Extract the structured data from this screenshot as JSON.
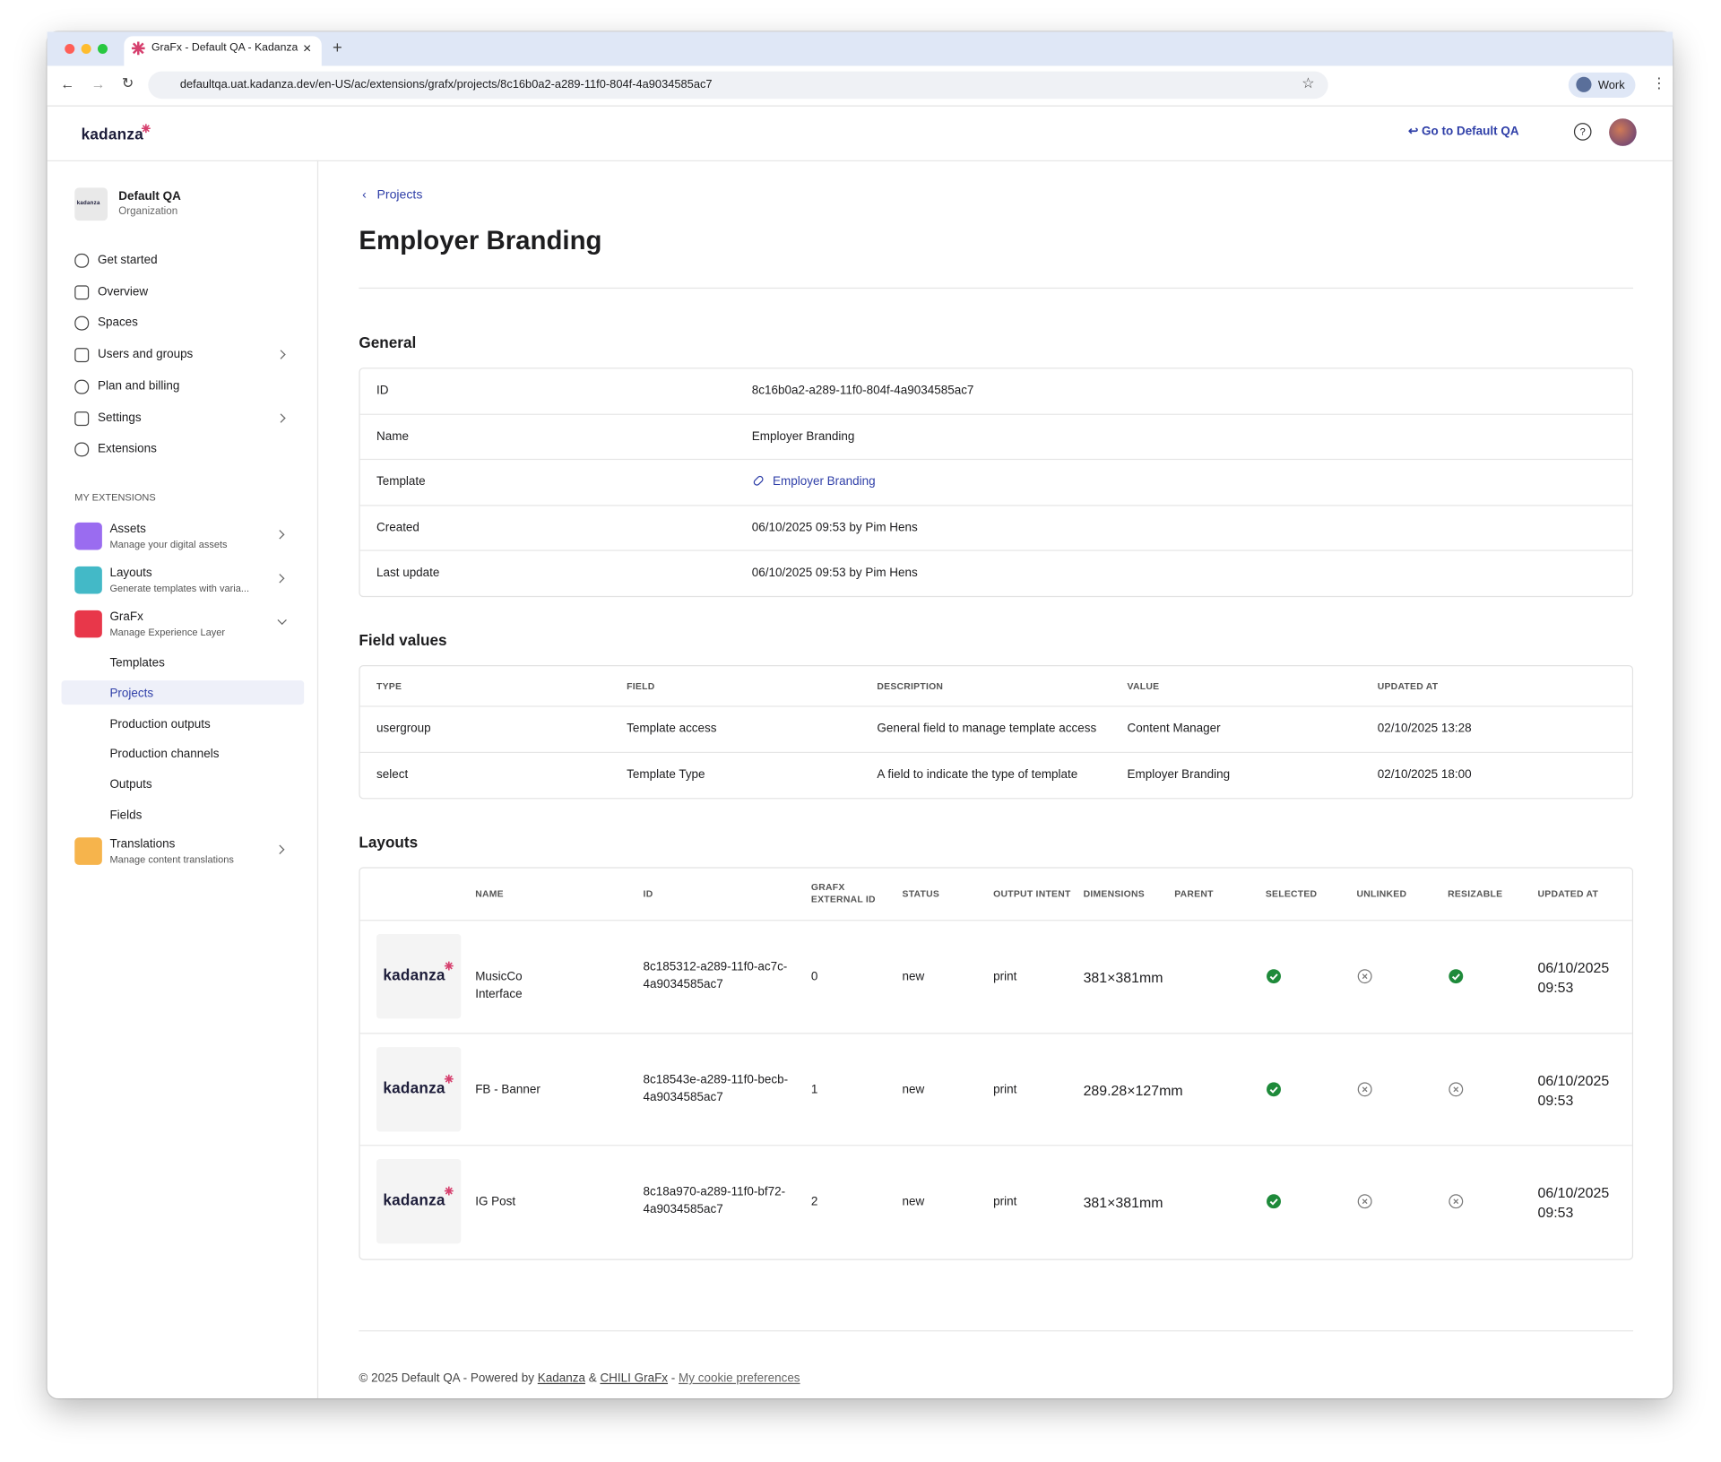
{
  "browser": {
    "tab_title": "GraFx - Default QA - Kadanza",
    "url": "defaultqa.uat.kadanza.dev/en-US/ac/extensions/grafx/projects/8c16b0a2-a289-11f0-804f-4a9034585ac7",
    "profile": "Work"
  },
  "header": {
    "logo": "kadanza",
    "back_link": "Go to Default QA"
  },
  "sidebar": {
    "org_logo": "kadanza",
    "org_name": "Default QA",
    "org_type": "Organization",
    "nav": [
      {
        "label": "Get started"
      },
      {
        "label": "Overview"
      },
      {
        "label": "Spaces"
      },
      {
        "label": "Users and groups",
        "expandable": true
      },
      {
        "label": "Plan and billing"
      },
      {
        "label": "Settings",
        "expandable": true
      },
      {
        "label": "Extensions"
      }
    ],
    "extensions_heading": "MY EXTENSIONS",
    "extensions": [
      {
        "name": "Assets",
        "description": "Manage your digital assets",
        "color": "#9a6cf0"
      },
      {
        "name": "Layouts",
        "description": "Generate templates with varia...",
        "color": "#43b9c7"
      },
      {
        "name": "GraFx",
        "description": "Manage Experience Layer",
        "color": "#e8374a",
        "expanded": true,
        "items": [
          "Templates",
          "Projects",
          "Production outputs",
          "Production channels",
          "Outputs",
          "Fields"
        ],
        "active_item": 1
      },
      {
        "name": "Translations",
        "description": "Manage content translations",
        "color": "#f6b44c"
      }
    ]
  },
  "main": {
    "breadcrumb": "Projects",
    "title": "Employer Branding",
    "general": {
      "heading": "General",
      "rows": [
        [
          "ID",
          "8c16b0a2-a289-11f0-804f-4a9034585ac7"
        ],
        [
          "Name",
          "Employer Branding"
        ],
        [
          "Template",
          "Employer Branding"
        ],
        [
          "Created",
          "06/10/2025 09:53 by Pim Hens"
        ],
        [
          "Last update",
          "06/10/2025 09:53 by Pim Hens"
        ]
      ],
      "link_row": 2
    },
    "field_values": {
      "heading": "Field values",
      "columns": [
        "TYPE",
        "FIELD",
        "DESCRIPTION",
        "VALUE",
        "UPDATED AT"
      ],
      "rows": [
        [
          "usergroup",
          "Template access",
          "General field to manage template access",
          "Content Manager",
          "02/10/2025 13:28"
        ],
        [
          "select",
          "Template Type",
          "A field to indicate the type of template",
          "Employer Branding",
          "02/10/2025 18:00"
        ]
      ]
    },
    "layouts": {
      "heading": "Layouts",
      "columns": [
        "NAME",
        "ID",
        "GRAFX EXTERNAL ID",
        "STATUS",
        "OUTPUT INTENT",
        "DIMENSIONS",
        "PARENT",
        "SELECTED",
        "UNLINKED",
        "RESIZABLE",
        "UPDATED AT"
      ],
      "rows": [
        {
          "thumbnail": "kadanza",
          "name": "MusicCo Interface",
          "id": "8c185312-a289-11f0-ac7c-4a9034585ac7",
          "external_id": "0",
          "status": "new",
          "output_intent": "print",
          "dimensions": "381×381mm",
          "selected": true,
          "unlinked": false,
          "resizable": true,
          "updated_at": "06/10/2025 09:53"
        },
        {
          "thumbnail": "kadanza",
          "name": "FB - Banner",
          "id": "8c18543e-a289-11f0-becb-4a9034585ac7",
          "external_id": "1",
          "status": "new",
          "output_intent": "print",
          "dimensions": "289.28×127mm",
          "selected": true,
          "unlinked": false,
          "resizable": false,
          "updated_at": "06/10/2025 09:53"
        },
        {
          "thumbnail": "kadanza",
          "name": "IG Post",
          "id": "8c18a970-a289-11f0-bf72-4a9034585ac7",
          "external_id": "2",
          "status": "new",
          "output_intent": "print",
          "dimensions": "381×381mm",
          "selected": true,
          "unlinked": false,
          "resizable": false,
          "updated_at": "06/10/2025 09:53"
        }
      ]
    }
  },
  "footer": {
    "text": "© 2025 Default QA - Powered by",
    "link1": "Kadanza",
    "amp": "&",
    "link2": "CHILI GraFx",
    "dash": "-",
    "link3": "My cookie preferences"
  }
}
